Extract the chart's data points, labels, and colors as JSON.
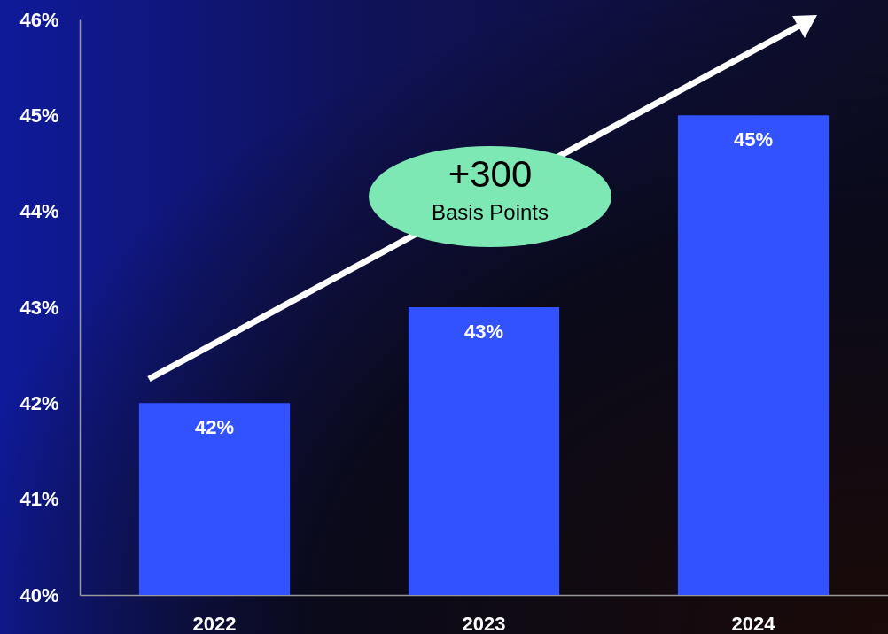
{
  "chart_data": {
    "type": "bar",
    "categories": [
      "2022",
      "2023",
      "2024"
    ],
    "values": [
      42,
      43,
      45
    ],
    "value_labels": [
      "42%",
      "43%",
      "45%"
    ],
    "color": "#3352ff",
    "ylim": [
      40,
      46
    ],
    "yticks": [
      {
        "value": 40,
        "label": "40%"
      },
      {
        "value": 41,
        "label": "41%"
      },
      {
        "value": 42,
        "label": "42%"
      },
      {
        "value": 43,
        "label": "43%"
      },
      {
        "value": 44,
        "label": "44%"
      },
      {
        "value": 45,
        "label": "45%"
      },
      {
        "value": 46,
        "label": "46%"
      }
    ],
    "annotations": [
      "+300",
      "Basis Points"
    ],
    "grid": false
  }
}
